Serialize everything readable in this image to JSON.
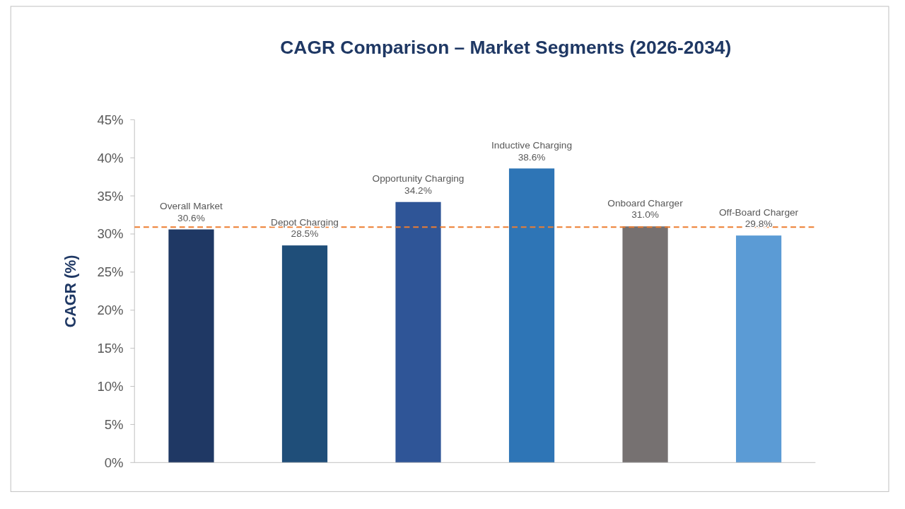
{
  "chart_data": {
    "type": "bar",
    "title": "CAGR Comparison – Market Segments (2026-2034)",
    "ylabel": "CAGR (%)",
    "categories": [
      "Overall Market",
      "Depot Charging",
      "Opportunity Charging",
      "Inductive Charging",
      "Onboard Charger",
      "Off-Board Charger"
    ],
    "values": [
      30.6,
      28.5,
      34.2,
      38.6,
      31.0,
      29.8
    ],
    "colors": [
      "#1f3864",
      "#1f4e79",
      "#2f5597",
      "#2e75b6",
      "#767171",
      "#5b9bd5"
    ],
    "value_labels": [
      "30.6%",
      "28.5%",
      "34.2%",
      "38.6%",
      "31.0%",
      "29.8%"
    ],
    "ylim": [
      0,
      45
    ],
    "yticks": [
      {
        "value": 0,
        "label": "0%"
      },
      {
        "value": 5,
        "label": "5%"
      },
      {
        "value": 10,
        "label": "10%"
      },
      {
        "value": 15,
        "label": "15%"
      },
      {
        "value": 20,
        "label": "20%"
      },
      {
        "value": 25,
        "label": "25%"
      },
      {
        "value": 30,
        "label": "30%"
      },
      {
        "value": 35,
        "label": "35%"
      },
      {
        "value": 40,
        "label": "40%"
      },
      {
        "value": 45,
        "label": "45%"
      }
    ],
    "ref_lines": [
      {
        "axis": "y",
        "value": 30.9,
        "color": "#ed7d31",
        "line_style": "dashed"
      }
    ],
    "grid": false
  }
}
